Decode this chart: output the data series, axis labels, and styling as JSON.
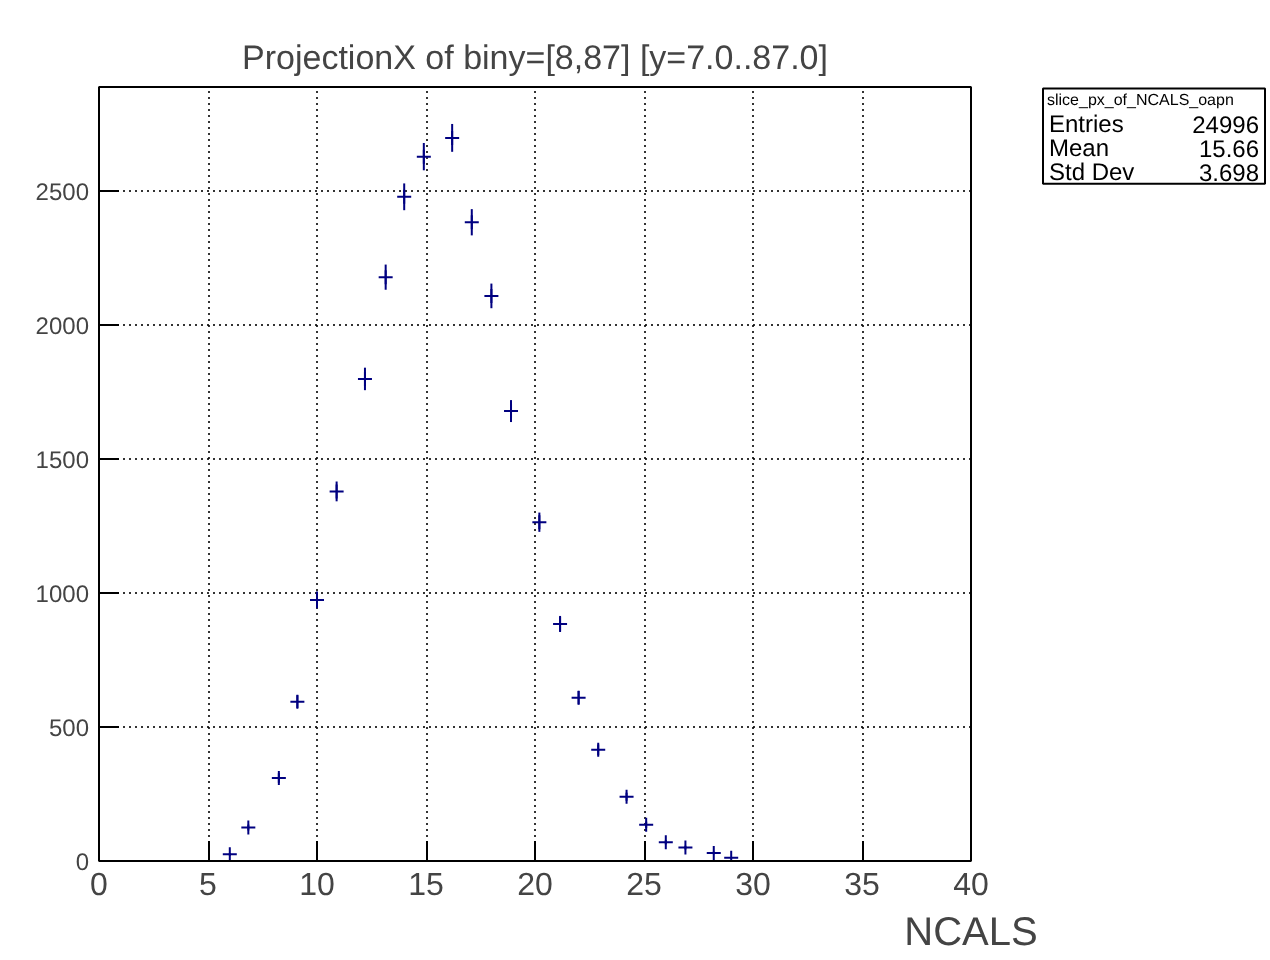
{
  "chart_data": {
    "type": "scatter",
    "title": "ProjectionX of biny=[8,87] [y=7.0..87.0]",
    "xlabel": "NCALS",
    "x": [
      6.0,
      6.85,
      8.25,
      9.1,
      10.0,
      10.9,
      12.2,
      13.15,
      14.0,
      14.9,
      16.2,
      17.1,
      18.0,
      18.9,
      20.2,
      21.15,
      22.0,
      22.9,
      24.2,
      25.1,
      26.0,
      26.9,
      28.2,
      29.0
    ],
    "series": [
      {
        "color": "#000080",
        "values": [
          25,
          125,
          310,
          595,
          975,
          1380,
          1800,
          2180,
          2480,
          2630,
          2700,
          2385,
          2110,
          1680,
          1265,
          885,
          610,
          415,
          240,
          135,
          70,
          50,
          30,
          12
        ],
        "errors": [
          5,
          11,
          18,
          24,
          31,
          37,
          42,
          47,
          50,
          51,
          52,
          49,
          46,
          41,
          36,
          30,
          25,
          20,
          15,
          12,
          8,
          7,
          5,
          3
        ]
      }
    ],
    "xlim": [
      0,
      40
    ],
    "ylim": [
      0,
      2890
    ],
    "xticks": [
      0,
      5,
      10,
      15,
      20,
      25,
      30,
      35,
      40
    ],
    "yticks": [
      0,
      500,
      1000,
      1500,
      2000,
      2500
    ],
    "grid": true,
    "marker": "cross",
    "annotations": [
      "slice_px_of_NCALS_oapn",
      "Entries",
      "24996",
      "Mean",
      "15.66",
      "Std Dev",
      "3.698"
    ]
  }
}
